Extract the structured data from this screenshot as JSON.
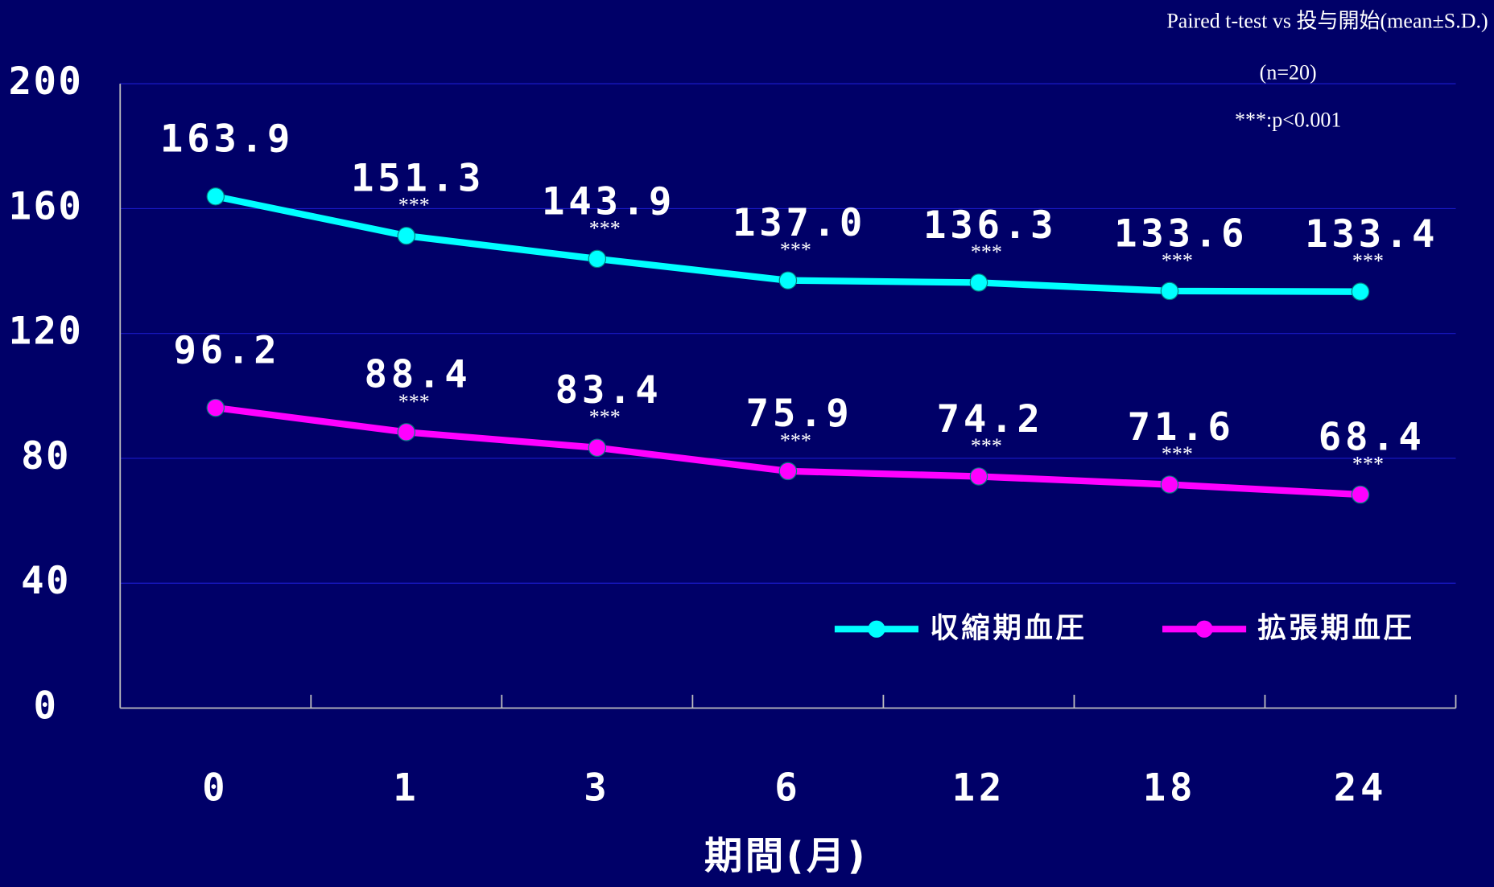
{
  "chart_data": {
    "type": "line",
    "annotations": [
      "Paired t-test vs 投与開始(mean±S.D.)",
      "(n=20)",
      "***:p<0.001"
    ],
    "x_label": "期間(月)",
    "categories": [
      "0",
      "1",
      "3",
      "6",
      "12",
      "18",
      "24"
    ],
    "series": [
      {
        "name": "収縮期血圧",
        "color": "#00ffff",
        "values": [
          163.9,
          151.3,
          143.9,
          137,
          136.3,
          133.6,
          133.4
        ],
        "value_labels": [
          "163.9",
          "151.3",
          "143.9",
          "137.0",
          "136.3",
          "133.6",
          "133.4"
        ],
        "significance": [
          null,
          "***",
          "***",
          "***",
          "***",
          "***",
          "***"
        ]
      },
      {
        "name": "拡張期血圧",
        "color": "#ff00ff",
        "values": [
          96.2,
          88.4,
          83.4,
          75.9,
          74.2,
          71.6,
          68.4
        ],
        "value_labels": [
          "96.2",
          "88.4",
          "83.4",
          "75.9",
          "74.2",
          "71.6",
          "68.4"
        ],
        "significance": [
          null,
          "***",
          "***",
          "***",
          "***",
          "***",
          "***"
        ]
      }
    ],
    "ylim": [
      0,
      200
    ],
    "yticks": [
      0,
      40,
      80,
      120,
      160,
      200
    ],
    "grid": true
  }
}
